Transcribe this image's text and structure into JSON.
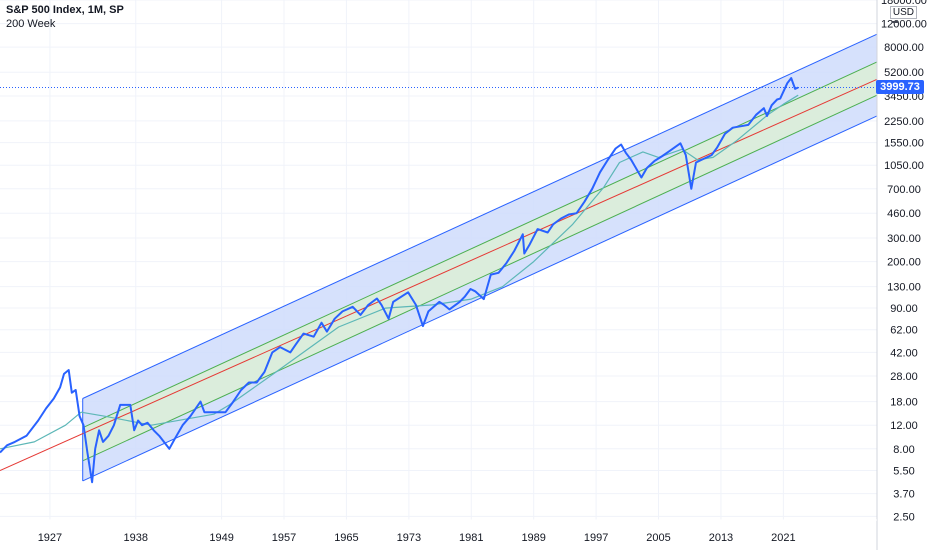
{
  "legend": {
    "title": "S&P 500 Index, 1M, SP",
    "indicator": "200 Week"
  },
  "currency": "USD",
  "last_price": "3999.73",
  "colors": {
    "price_line": "#2962ff",
    "outer_channel_fill": "#cfdcfb",
    "inner_channel_fill": "#dcefd6",
    "outer_channel_line": "#2962ff",
    "inner_channel_line": "#4caf50",
    "median_line": "#e53935",
    "ma_line": "#5db7b7",
    "price_tag": "#2962ff"
  },
  "chart_data": {
    "type": "line",
    "y_scale": "log",
    "ylim": [
      2.35,
      18000
    ],
    "xlim": [
      1920.6,
      2033.0
    ],
    "x_tick_labels": [
      "1927",
      "1938",
      "1949",
      "1957",
      "1965",
      "1973",
      "1981",
      "1989",
      "1997",
      "2005",
      "2013",
      "2021"
    ],
    "x_tick_values": [
      1927,
      1938,
      1949,
      1957,
      1965,
      1973,
      1981,
      1989,
      1997,
      2005,
      2013,
      2021
    ],
    "y_tick_labels": [
      "18000.00",
      "12000.00",
      "8000.00",
      "5200.00",
      "3450.00",
      "2250.00",
      "1550.00",
      "1050.00",
      "700.00",
      "460.00",
      "300.00",
      "200.00",
      "130.00",
      "90.00",
      "62.00",
      "42.00",
      "28.00",
      "18.00",
      "12.00",
      "8.00",
      "5.50",
      "3.70",
      "2.50"
    ],
    "series": [
      {
        "name": "S&P 500 Index",
        "x": [
          1920.6,
          1921.5,
          1922.5,
          1924,
          1925.5,
          1926.5,
          1927.5,
          1928.3,
          1928.8,
          1929.4,
          1929.8,
          1930.3,
          1930.8,
          1931.3,
          1931.8,
          1932.4,
          1932.8,
          1933.3,
          1933.8,
          1934.5,
          1935.2,
          1936,
          1936.8,
          1937.3,
          1937.8,
          1938.3,
          1938.8,
          1939.5,
          1940.3,
          1941,
          1942.3,
          1943,
          1944,
          1945,
          1946.3,
          1946.8,
          1947.5,
          1948.5,
          1949.5,
          1950.5,
          1951.5,
          1952.5,
          1953.5,
          1954.5,
          1955.5,
          1956.5,
          1957.8,
          1958.5,
          1959.5,
          1960.8,
          1961.8,
          1962.5,
          1963.5,
          1964.5,
          1965.8,
          1966.8,
          1967.8,
          1968.9,
          1969.5,
          1970.4,
          1971,
          1972.9,
          1973.9,
          1974.8,
          1975.5,
          1976.9,
          1977.5,
          1978.2,
          1979.5,
          1980.2,
          1980.9,
          1981.5,
          1982.6,
          1983.5,
          1984.5,
          1985.5,
          1986.5,
          1987.6,
          1987.8,
          1988.5,
          1989.5,
          1990.8,
          1991.5,
          1992.5,
          1993.5,
          1994.5,
          1995.5,
          1996.5,
          1997.5,
          1998.5,
          1999.5,
          2000.2,
          2000.8,
          2001.5,
          2002.8,
          2003.5,
          2004.5,
          2005.5,
          2006.5,
          2007.8,
          2008.5,
          2009.2,
          2009.8,
          2010.5,
          2011.8,
          2012.5,
          2013.5,
          2014.5,
          2015.5,
          2016.5,
          2017.5,
          2018.5,
          2018.9,
          2019.5,
          2020.2,
          2020.6,
          2021.5,
          2022.0,
          2022.5,
          2022.9
        ],
        "values": [
          7.5,
          8.5,
          9,
          10,
          13,
          16,
          19,
          23,
          29,
          31,
          21,
          22,
          14,
          12,
          7.5,
          4.5,
          8,
          11,
          9,
          10,
          12,
          17,
          17,
          17,
          11,
          13,
          12,
          12.5,
          11,
          10,
          8,
          9.5,
          12,
          14,
          18,
          15,
          15,
          15,
          15,
          18,
          22,
          25,
          25,
          30,
          42,
          46,
          42,
          48,
          58,
          55,
          70,
          60,
          75,
          85,
          92,
          80,
          95,
          106,
          95,
          75,
          100,
          118,
          95,
          66,
          85,
          100,
          95,
          88,
          100,
          110,
          125,
          120,
          105,
          160,
          165,
          195,
          240,
          320,
          230,
          270,
          350,
          330,
          380,
          420,
          450,
          460,
          560,
          700,
          930,
          1150,
          1400,
          1500,
          1300,
          1150,
          850,
          1000,
          1130,
          1230,
          1350,
          1530,
          1250,
          700,
          1100,
          1150,
          1250,
          1420,
          1800,
          2000,
          2050,
          2100,
          2500,
          2800,
          2450,
          2950,
          3250,
          3300,
          4300,
          4700,
          3900,
          3999.73
        ]
      },
      {
        "name": "200 Week",
        "x": [
          1920.6,
          1925,
          1929,
          1931,
          1934,
          1940,
          1948,
          1950,
          1956,
          1964,
          1970,
          1976,
          1981,
          1985,
          1989,
          1994,
          1998,
          2000,
          2003,
          2005,
          2008,
          2010,
          2012,
          2015,
          2019,
          2021,
          2022.9
        ],
        "values": [
          8,
          9,
          12,
          15,
          14,
          12,
          14.5,
          17,
          30,
          65,
          90,
          95,
          105,
          130,
          200,
          380,
          720,
          1100,
          1320,
          1200,
          1380,
          1150,
          1200,
          1600,
          2500,
          3000,
          3500
        ]
      }
    ],
    "channel": {
      "x_start": 1931.2,
      "x_end": 2033.0,
      "outer_upper": [
        19,
        10000
      ],
      "inner_upper": [
        11.5,
        6200
      ],
      "median": [
        8.5,
        4600
      ],
      "inner_lower": [
        6.5,
        3500
      ],
      "outer_lower": [
        4.6,
        2450
      ],
      "median_extension_start": [
        1920.6,
        5.5
      ]
    },
    "grid": true,
    "legend_placement": "top-left",
    "last_value_line": 3999.73
  }
}
